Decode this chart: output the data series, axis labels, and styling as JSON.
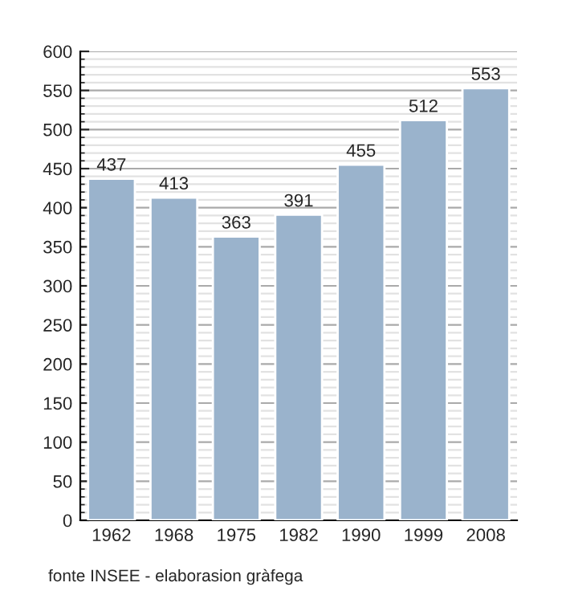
{
  "chart_data": {
    "type": "bar",
    "categories": [
      "1962",
      "1968",
      "1975",
      "1982",
      "1990",
      "1999",
      "2008"
    ],
    "values": [
      437,
      413,
      363,
      391,
      455,
      512,
      553
    ],
    "color": "#9ab3cc",
    "data_labels": true,
    "ylim": [
      0,
      600
    ],
    "yticks": [
      0,
      50,
      100,
      150,
      200,
      250,
      300,
      350,
      400,
      450,
      500,
      550,
      600
    ],
    "grid": "y",
    "annotations": [
      "fonte INSEE - elaborasion gràfega"
    ]
  }
}
